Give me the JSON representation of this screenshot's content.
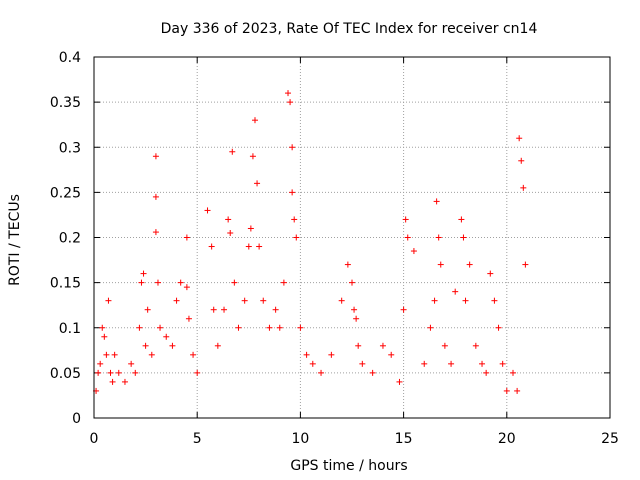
{
  "chart_data": {
    "type": "scatter",
    "title": "Day 336 of 2023, Rate Of TEC Index for receiver cn14",
    "xlabel": "GPS time / hours",
    "ylabel": "ROTI / TECUs",
    "xlim": [
      0,
      25
    ],
    "ylim": [
      0,
      0.4
    ],
    "x_ticks": [
      "0",
      "5",
      "10",
      "15",
      "20",
      "25"
    ],
    "y_ticks": [
      "0",
      "0.05",
      "0.1",
      "0.15",
      "0.2",
      "0.25",
      "0.3",
      "0.35",
      "0.4"
    ],
    "grid": true,
    "marker": "+",
    "color": "#ff0000",
    "series": [
      {
        "x": [
          0.1,
          0.2,
          0.3,
          0.4,
          0.5,
          0.6,
          0.7,
          0.8,
          0.9,
          1.0,
          1.2,
          1.5,
          1.8,
          2.0,
          2.2,
          2.3,
          2.4,
          2.5,
          2.6,
          2.8,
          3.0,
          3.0,
          3.0,
          3.1,
          3.2,
          3.5,
          3.8,
          4.0,
          4.2,
          4.5,
          4.5,
          4.6,
          4.8,
          5.0,
          5.5,
          5.7,
          5.8,
          6.0,
          6.3,
          6.5,
          6.6,
          6.7,
          6.8,
          7.0,
          7.3,
          7.5,
          7.6,
          7.7,
          7.8,
          7.9,
          8.0,
          8.2,
          8.5,
          8.8,
          9.0,
          9.2,
          9.4,
          9.5,
          9.6,
          9.6,
          9.7,
          9.8,
          10.0,
          10.3,
          10.6,
          11.0,
          11.5,
          12.0,
          12.3,
          12.5,
          12.6,
          12.7,
          12.8,
          13.0,
          13.5,
          14.0,
          14.4,
          14.8,
          15.0,
          15.1,
          15.2,
          15.5,
          16.0,
          16.3,
          16.5,
          16.6,
          16.7,
          16.8,
          17.0,
          17.3,
          17.5,
          17.8,
          17.9,
          18.0,
          18.2,
          18.5,
          18.8,
          19.0,
          19.2,
          19.4,
          19.6,
          19.8,
          20.0,
          20.3,
          20.5,
          20.6,
          20.7,
          20.8,
          20.9
        ],
        "y": [
          0.03,
          0.05,
          0.06,
          0.1,
          0.09,
          0.07,
          0.13,
          0.05,
          0.04,
          0.07,
          0.05,
          0.04,
          0.06,
          0.05,
          0.1,
          0.15,
          0.16,
          0.08,
          0.12,
          0.07,
          0.29,
          0.245,
          0.206,
          0.15,
          0.1,
          0.09,
          0.08,
          0.13,
          0.15,
          0.2,
          0.145,
          0.11,
          0.07,
          0.05,
          0.23,
          0.19,
          0.12,
          0.08,
          0.12,
          0.22,
          0.205,
          0.295,
          0.15,
          0.1,
          0.13,
          0.19,
          0.21,
          0.29,
          0.33,
          0.26,
          0.19,
          0.13,
          0.1,
          0.12,
          0.1,
          0.15,
          0.36,
          0.35,
          0.3,
          0.25,
          0.22,
          0.2,
          0.1,
          0.07,
          0.06,
          0.05,
          0.07,
          0.13,
          0.17,
          0.15,
          0.12,
          0.11,
          0.08,
          0.06,
          0.05,
          0.08,
          0.07,
          0.04,
          0.12,
          0.22,
          0.2,
          0.185,
          0.06,
          0.1,
          0.13,
          0.24,
          0.2,
          0.17,
          0.08,
          0.06,
          0.14,
          0.22,
          0.2,
          0.13,
          0.17,
          0.08,
          0.06,
          0.05,
          0.16,
          0.13,
          0.1,
          0.06,
          0.03,
          0.05,
          0.03,
          0.31,
          0.285,
          0.255,
          0.17
        ]
      }
    ]
  }
}
